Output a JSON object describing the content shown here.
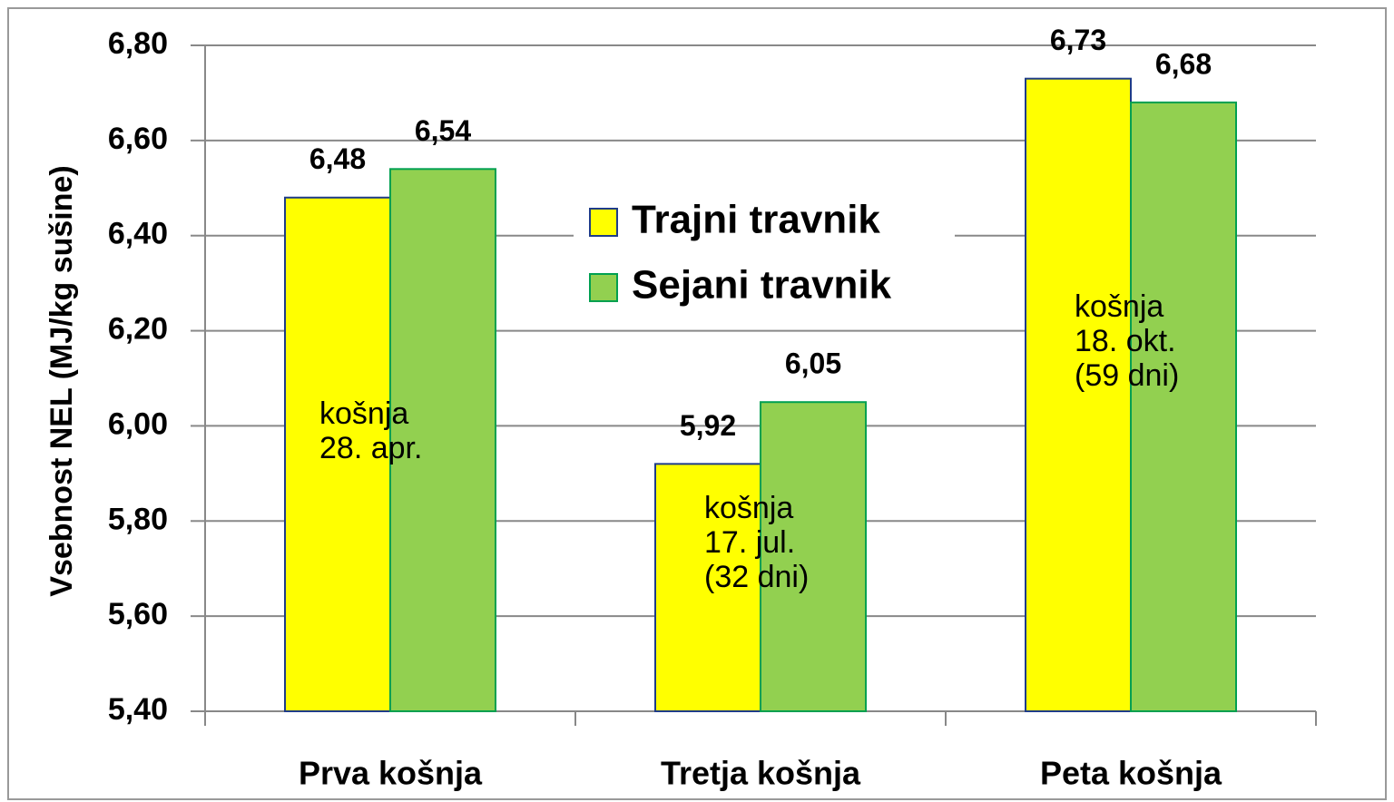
{
  "chart_data": {
    "type": "bar",
    "y_label": "Vsebnost NEL (MJ/kg sušine)",
    "categories": [
      "Prva košnja",
      "Tretja košnja",
      "Peta košnja"
    ],
    "series": [
      {
        "name": "Trajni travnik",
        "color": "#ffff00",
        "values": [
          6.48,
          5.92,
          6.73
        ],
        "value_labels": [
          "6,48",
          "5,92",
          "6,73"
        ]
      },
      {
        "name": "Sejani travnik",
        "color": "#92d050",
        "values": [
          6.54,
          6.05,
          6.68
        ],
        "value_labels": [
          "6,54",
          "6,05",
          "6,68"
        ]
      }
    ],
    "ylim": [
      5.4,
      6.8
    ],
    "yticks": [
      {
        "value": 5.4,
        "label": "5,40"
      },
      {
        "value": 5.6,
        "label": "5,60"
      },
      {
        "value": 5.8,
        "label": "5,80"
      },
      {
        "value": 6.0,
        "label": "6,00"
      },
      {
        "value": 6.2,
        "label": "6,20"
      },
      {
        "value": 6.4,
        "label": "6,40"
      },
      {
        "value": 6.6,
        "label": "6,60"
      },
      {
        "value": 6.8,
        "label": "6,80"
      }
    ],
    "grid": true,
    "annotations": [
      [
        "košnja",
        "28. apr."
      ],
      [
        "košnja",
        "17. jul.",
        "(32 dni)"
      ],
      [
        "košnja",
        "18. okt.",
        "(59 dni)"
      ]
    ]
  }
}
